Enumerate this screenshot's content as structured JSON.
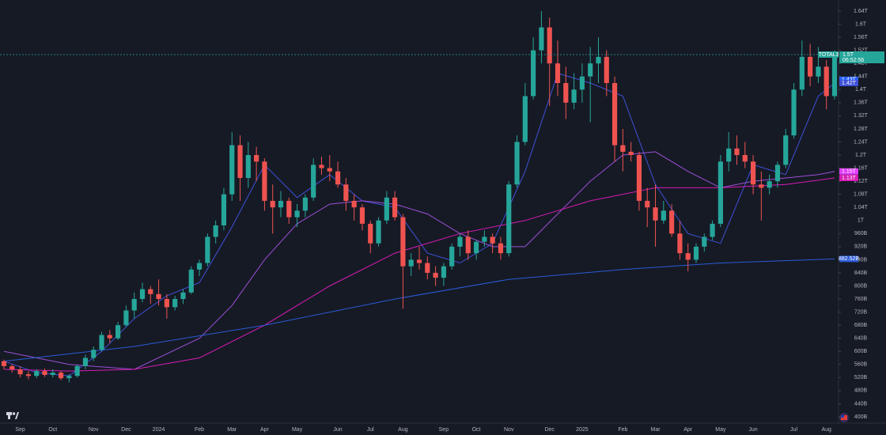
{
  "chart_data": {
    "type": "candlestick",
    "symbol": "TOTAL3",
    "countdown": "06:52:56",
    "last_price": {
      "value": 1507,
      "label": "1.5T"
    },
    "up_color": "#26a69a",
    "down_color": "#ef5350",
    "ylim": [
      400,
      1660
    ],
    "yticks": [
      {
        "value": 400,
        "label": "400B"
      },
      {
        "value": 440,
        "label": "440B"
      },
      {
        "value": 480,
        "label": "480B"
      },
      {
        "value": 520,
        "label": "520B"
      },
      {
        "value": 560,
        "label": "560B"
      },
      {
        "value": 600,
        "label": "600B"
      },
      {
        "value": 640,
        "label": "640B"
      },
      {
        "value": 680,
        "label": "680B"
      },
      {
        "value": 720,
        "label": "720B"
      },
      {
        "value": 760,
        "label": "760B"
      },
      {
        "value": 800,
        "label": "800B"
      },
      {
        "value": 840,
        "label": "840B"
      },
      {
        "value": 880,
        "label": "880B"
      },
      {
        "value": 920,
        "label": "920B"
      },
      {
        "value": 960,
        "label": "960B"
      },
      {
        "value": 1000,
        "label": "1T"
      },
      {
        "value": 1040,
        "label": "1.04T"
      },
      {
        "value": 1080,
        "label": "1.08T"
      },
      {
        "value": 1120,
        "label": "1.12T"
      },
      {
        "value": 1160,
        "label": "1.16T"
      },
      {
        "value": 1200,
        "label": "1.2T"
      },
      {
        "value": 1240,
        "label": "1.24T"
      },
      {
        "value": 1280,
        "label": "1.28T"
      },
      {
        "value": 1320,
        "label": "1.32T"
      },
      {
        "value": 1360,
        "label": "1.36T"
      },
      {
        "value": 1400,
        "label": "1.4T"
      },
      {
        "value": 1440,
        "label": "1.44T"
      },
      {
        "value": 1480,
        "label": "1.48T"
      },
      {
        "value": 1520,
        "label": "1.52T"
      },
      {
        "value": 1560,
        "label": "1.56T"
      },
      {
        "value": 1600,
        "label": "1.6T"
      },
      {
        "value": 1640,
        "label": "1.64T"
      }
    ],
    "categories": [
      null,
      null,
      "Sep",
      null,
      null,
      null,
      "Oct",
      null,
      null,
      null,
      null,
      "Nov",
      null,
      null,
      null,
      "Dec",
      null,
      null,
      null,
      "2024",
      null,
      null,
      null,
      null,
      "Feb",
      null,
      null,
      null,
      "Mar",
      null,
      null,
      null,
      "Apr",
      null,
      null,
      null,
      "May",
      null,
      null,
      null,
      null,
      "Jun",
      null,
      null,
      null,
      "Jul",
      null,
      null,
      null,
      "Aug",
      null,
      null,
      null,
      null,
      "Sep",
      null,
      null,
      null,
      "Oct",
      null,
      null,
      null,
      "Nov",
      null,
      null,
      null,
      null,
      "Dec",
      null,
      null,
      null,
      "2025",
      null,
      null,
      null,
      null,
      "Feb",
      null,
      null,
      null,
      "Mar",
      null,
      null,
      null,
      "Apr",
      null,
      null,
      null,
      "May",
      null,
      null,
      null,
      "Jun",
      null,
      null,
      null,
      null,
      "Jul",
      null,
      null,
      null,
      "Aug",
      null
    ],
    "candles": [
      [
        570,
        575,
        545,
        555
      ],
      [
        555,
        560,
        535,
        545
      ],
      [
        545,
        555,
        520,
        530
      ],
      [
        530,
        540,
        515,
        525
      ],
      [
        525,
        545,
        518,
        540
      ],
      [
        540,
        548,
        522,
        528
      ],
      [
        528,
        545,
        520,
        535
      ],
      [
        535,
        540,
        512,
        518
      ],
      [
        518,
        530,
        505,
        525
      ],
      [
        525,
        560,
        520,
        555
      ],
      [
        555,
        590,
        545,
        580
      ],
      [
        580,
        615,
        570,
        605
      ],
      [
        605,
        660,
        600,
        650
      ],
      [
        650,
        665,
        625,
        640
      ],
      [
        640,
        690,
        635,
        680
      ],
      [
        680,
        740,
        675,
        725
      ],
      [
        725,
        780,
        700,
        760
      ],
      [
        760,
        810,
        750,
        790
      ],
      [
        790,
        800,
        745,
        775
      ],
      [
        775,
        820,
        740,
        760
      ],
      [
        760,
        775,
        700,
        735
      ],
      [
        735,
        770,
        725,
        760
      ],
      [
        760,
        790,
        745,
        780
      ],
      [
        780,
        860,
        775,
        850
      ],
      [
        850,
        880,
        830,
        870
      ],
      [
        870,
        960,
        860,
        950
      ],
      [
        950,
        1000,
        930,
        985
      ],
      [
        985,
        1100,
        970,
        1080
      ],
      [
        1080,
        1270,
        1060,
        1230
      ],
      [
        1230,
        1260,
        1060,
        1130
      ],
      [
        1130,
        1240,
        1100,
        1200
      ],
      [
        1200,
        1225,
        1120,
        1180
      ],
      [
        1180,
        1190,
        1030,
        1060
      ],
      [
        1060,
        1110,
        960,
        1040
      ],
      [
        1040,
        1090,
        1010,
        1060
      ],
      [
        1060,
        1070,
        990,
        1010
      ],
      [
        1010,
        1050,
        980,
        1030
      ],
      [
        1030,
        1080,
        1010,
        1070
      ],
      [
        1070,
        1190,
        1060,
        1170
      ],
      [
        1170,
        1195,
        1140,
        1160
      ],
      [
        1160,
        1200,
        1120,
        1150
      ],
      [
        1150,
        1180,
        1100,
        1110
      ],
      [
        1110,
        1130,
        1030,
        1060
      ],
      [
        1060,
        1080,
        1000,
        1040
      ],
      [
        1040,
        1050,
        970,
        990
      ],
      [
        990,
        1000,
        900,
        930
      ],
      [
        930,
        1010,
        920,
        1000
      ],
      [
        1000,
        1090,
        990,
        1070
      ],
      [
        1070,
        1090,
        1000,
        1010
      ],
      [
        1010,
        1020,
        730,
        860
      ],
      [
        860,
        900,
        830,
        880
      ],
      [
        880,
        920,
        850,
        870
      ],
      [
        870,
        890,
        820,
        840
      ],
      [
        840,
        860,
        800,
        825
      ],
      [
        825,
        870,
        800,
        860
      ],
      [
        860,
        930,
        850,
        920
      ],
      [
        920,
        960,
        890,
        950
      ],
      [
        950,
        970,
        880,
        900
      ],
      [
        900,
        940,
        880,
        935
      ],
      [
        935,
        970,
        920,
        950
      ],
      [
        950,
        960,
        900,
        930
      ],
      [
        930,
        950,
        880,
        900
      ],
      [
        900,
        1120,
        890,
        1110
      ],
      [
        1110,
        1260,
        1100,
        1240
      ],
      [
        1240,
        1420,
        1230,
        1380
      ],
      [
        1380,
        1560,
        1370,
        1520
      ],
      [
        1520,
        1640,
        1480,
        1590
      ],
      [
        1590,
        1620,
        1350,
        1480
      ],
      [
        1480,
        1550,
        1380,
        1420
      ],
      [
        1420,
        1470,
        1310,
        1360
      ],
      [
        1360,
        1450,
        1340,
        1400
      ],
      [
        1400,
        1480,
        1360,
        1440
      ],
      [
        1440,
        1530,
        1300,
        1480
      ],
      [
        1480,
        1560,
        1420,
        1500
      ],
      [
        1500,
        1520,
        1380,
        1420
      ],
      [
        1420,
        1440,
        1180,
        1230
      ],
      [
        1230,
        1280,
        1150,
        1210
      ],
      [
        1210,
        1240,
        1180,
        1200
      ],
      [
        1200,
        1210,
        1030,
        1060
      ],
      [
        1060,
        1100,
        980,
        1040
      ],
      [
        1040,
        1110,
        920,
        1000
      ],
      [
        1000,
        1060,
        990,
        1030
      ],
      [
        1030,
        1050,
        950,
        960
      ],
      [
        960,
        1000,
        880,
        900
      ],
      [
        900,
        930,
        845,
        880
      ],
      [
        880,
        930,
        870,
        920
      ],
      [
        920,
        960,
        905,
        950
      ],
      [
        950,
        1000,
        940,
        990
      ],
      [
        990,
        1200,
        980,
        1180
      ],
      [
        1180,
        1270,
        1150,
        1220
      ],
      [
        1220,
        1260,
        1170,
        1200
      ],
      [
        1200,
        1240,
        1160,
        1180
      ],
      [
        1180,
        1200,
        1080,
        1110
      ],
      [
        1110,
        1150,
        1000,
        1100
      ],
      [
        1100,
        1140,
        1080,
        1120
      ],
      [
        1120,
        1180,
        1100,
        1170
      ],
      [
        1170,
        1280,
        1160,
        1260
      ],
      [
        1260,
        1420,
        1250,
        1400
      ],
      [
        1400,
        1550,
        1380,
        1500
      ],
      [
        1500,
        1540,
        1410,
        1440
      ],
      [
        1440,
        1530,
        1420,
        1470
      ],
      [
        1470,
        1490,
        1340,
        1380
      ],
      [
        1380,
        1520,
        1370,
        1507
      ]
    ],
    "moving_averages": [
      {
        "color": "#3f51d8",
        "x": [
          0,
          4,
          8,
          12,
          16,
          20,
          24,
          28,
          32,
          36,
          40,
          44,
          48,
          52,
          56,
          60,
          64,
          68,
          72,
          76,
          80,
          84,
          88,
          92,
          96,
          100,
          102
        ],
        "values": [
          570,
          535,
          525,
          600,
          700,
          770,
          810,
          980,
          1170,
          1070,
          1140,
          1060,
          1040,
          900,
          870,
          930,
          1150,
          1450,
          1420,
          1380,
          1110,
          960,
          930,
          1170,
          1140,
          1380,
          1420
        ]
      },
      {
        "color": "#9c4fd6",
        "x": [
          0,
          8,
          16,
          24,
          28,
          32,
          36,
          40,
          44,
          48,
          52,
          56,
          60,
          64,
          68,
          72,
          76,
          80,
          84,
          88,
          92,
          96,
          100,
          102
        ],
        "values": [
          600,
          560,
          545,
          640,
          740,
          880,
          990,
          1050,
          1060,
          1050,
          1020,
          960,
          920,
          920,
          1020,
          1120,
          1200,
          1210,
          1150,
          1100,
          1120,
          1130,
          1140,
          1150
        ]
      },
      {
        "color": "#d81bb5",
        "x": [
          0,
          8,
          16,
          24,
          32,
          40,
          48,
          56,
          64,
          72,
          80,
          88,
          96,
          102
        ],
        "values": [
          545,
          540,
          545,
          580,
          680,
          800,
          900,
          960,
          1000,
          1060,
          1100,
          1100,
          1110,
          1130
        ]
      },
      {
        "color": "#2a5bd7",
        "x": [
          0,
          16,
          32,
          48,
          62,
          76,
          88,
          102
        ],
        "values": [
          570,
          615,
          680,
          760,
          820,
          850,
          870,
          882.52
        ]
      }
    ],
    "price_badges": [
      {
        "value": 1430,
        "label": "1.43T",
        "color": "#2962ff"
      },
      {
        "value": 1420,
        "label": "1.42T",
        "color": "#3f51d8"
      },
      {
        "value": 1150,
        "label": "1.15T",
        "color": "#e040fb"
      },
      {
        "value": 1130,
        "label": "1.13T",
        "color": "#d81bb5"
      },
      {
        "value": 882.52,
        "label": "882.52B",
        "color": "#2a5bd7"
      }
    ]
  }
}
